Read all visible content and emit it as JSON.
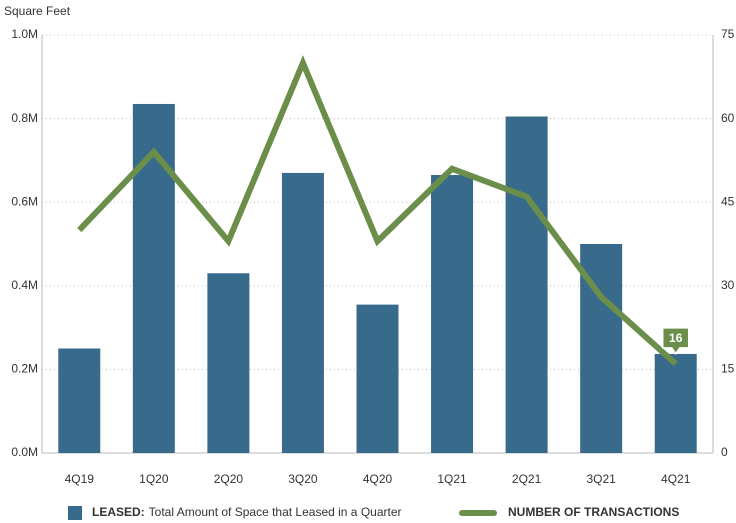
{
  "chart_data": {
    "type": "bar_line",
    "y_label": "Square Feet",
    "categories": [
      "4Q19",
      "1Q20",
      "2Q20",
      "3Q20",
      "4Q20",
      "1Q21",
      "2Q21",
      "3Q21",
      "4Q21"
    ],
    "series": [
      {
        "name": "LEASED:",
        "description": "Total Amount of Space that Leased in a Quarter",
        "type": "bar",
        "color": "#386a8b",
        "values": [
          250000,
          835000,
          430000,
          670000,
          355000,
          665000,
          805000,
          500000,
          237000
        ]
      },
      {
        "name": "NUMBER OF TRANSACTIONS",
        "type": "line",
        "axis": "y2",
        "color": "#6b8f4b",
        "values": [
          40,
          54,
          38,
          70,
          38,
          51,
          46,
          28,
          16
        ],
        "value_labels": [
          null,
          null,
          null,
          null,
          null,
          null,
          null,
          null,
          "16"
        ]
      }
    ],
    "ylim": [
      0,
      1000000
    ],
    "yticks": [
      {
        "value": 0,
        "label": "0.0M"
      },
      {
        "value": 200000,
        "label": "0.2M"
      },
      {
        "value": 400000,
        "label": "0.4M"
      },
      {
        "value": 600000,
        "label": "0.6M"
      },
      {
        "value": 800000,
        "label": "0.8M"
      },
      {
        "value": 1000000,
        "label": "1.0M"
      }
    ],
    "y2lim": [
      0,
      75
    ],
    "y2ticks": [
      0,
      15,
      30,
      45,
      60,
      75
    ],
    "grid": true
  }
}
